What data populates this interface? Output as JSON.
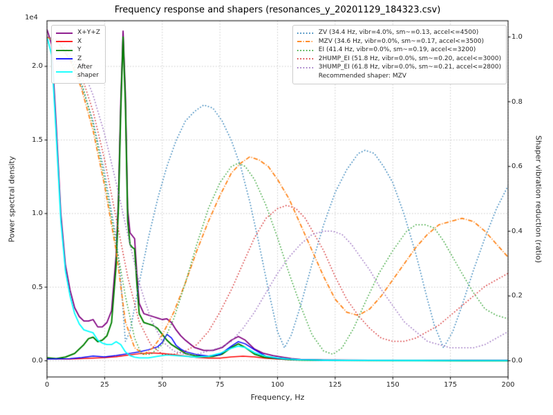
{
  "chart_data": {
    "type": "line",
    "title": "Frequency response and shapers (resonances_y_20201129_184323.csv)",
    "xlabel": "Frequency, Hz",
    "ylabel_left": "Power spectral density",
    "ylabel_right": "Shaper vibration reduction (ratio)",
    "y_left_offset_text": "1e4",
    "xlim": [
      0,
      200
    ],
    "ylim_left": [
      -1100,
      23100
    ],
    "ylim_right": [
      -0.05,
      1.05
    ],
    "grid": true,
    "x_ticks": {
      "values": [
        0,
        25,
        50,
        75,
        100,
        125,
        150,
        175,
        200
      ],
      "labels": [
        "0",
        "25",
        "50",
        "75",
        "100",
        "125",
        "150",
        "175",
        "200"
      ]
    },
    "y_ticks_left": {
      "values": [
        0,
        5000,
        10000,
        15000,
        20000
      ],
      "labels": [
        "0.0",
        "0.5",
        "1.0",
        "1.5",
        "2.0"
      ]
    },
    "y_ticks_right": {
      "values": [
        0,
        0.2,
        0.4,
        0.6,
        0.8,
        1.0
      ],
      "labels": [
        "0.0",
        "0.2",
        "0.4",
        "0.6",
        "0.8",
        "1.0"
      ]
    },
    "colors": {
      "grid": "#c3c3c3",
      "spine": "#000000",
      "text": "#262626"
    },
    "psd_series": [
      {
        "key": "xyz",
        "label": "X+Y+Z",
        "color": "#800080",
        "style": "solid",
        "axis": "left",
        "linewidth": 1.8,
        "x": [
          0,
          2,
          4,
          6,
          8,
          10,
          12,
          14,
          16,
          18,
          20,
          22,
          24,
          26,
          28,
          30,
          31,
          32,
          33,
          34,
          35,
          36,
          37,
          38,
          39,
          40,
          42,
          44,
          46,
          48,
          50,
          52,
          54,
          56,
          58,
          60,
          64,
          68,
          72,
          76,
          80,
          83,
          86,
          90,
          94,
          98,
          102,
          106,
          110,
          120,
          140,
          160,
          180,
          200
        ],
        "y": [
          22500,
          21500,
          16000,
          10000,
          6500,
          4800,
          3600,
          3000,
          2700,
          2700,
          2800,
          2300,
          2300,
          2600,
          3400,
          7200,
          11200,
          17700,
          22400,
          18200,
          10300,
          8700,
          8500,
          8300,
          5900,
          3900,
          3200,
          3100,
          3000,
          2900,
          2800,
          2850,
          2600,
          2100,
          1700,
          1400,
          900,
          700,
          700,
          900,
          1400,
          1650,
          1400,
          800,
          500,
          350,
          250,
          150,
          90,
          60,
          35,
          25,
          20,
          20
        ]
      },
      {
        "key": "x",
        "label": "X",
        "color": "#ff0000",
        "style": "solid",
        "axis": "left",
        "linewidth": 1.5,
        "x": [
          0,
          10,
          20,
          25,
          30,
          35,
          40,
          45,
          50,
          55,
          60,
          65,
          70,
          75,
          80,
          85,
          90,
          95,
          100,
          110,
          120,
          140,
          160,
          180,
          200
        ],
        "y": [
          150,
          120,
          180,
          220,
          280,
          380,
          480,
          530,
          500,
          420,
          320,
          230,
          180,
          180,
          260,
          310,
          260,
          170,
          120,
          60,
          40,
          25,
          20,
          15,
          15
        ]
      },
      {
        "key": "y",
        "label": "Y",
        "color": "#008000",
        "style": "solid",
        "axis": "left",
        "linewidth": 2.0,
        "x": [
          0,
          4,
          8,
          12,
          16,
          18,
          20,
          22,
          24,
          26,
          28,
          30,
          31,
          32,
          33,
          34,
          35,
          36,
          37,
          38,
          39,
          40,
          42,
          44,
          46,
          48,
          50,
          52,
          54,
          56,
          58,
          60,
          64,
          68,
          72,
          76,
          80,
          83,
          86,
          90,
          94,
          98,
          102,
          106,
          110,
          120,
          140,
          160,
          180,
          200
        ],
        "y": [
          200,
          150,
          250,
          500,
          1100,
          1500,
          1600,
          1300,
          1400,
          1700,
          2600,
          6500,
          10500,
          17000,
          22000,
          17500,
          9500,
          7900,
          7700,
          7600,
          5200,
          3200,
          2600,
          2500,
          2400,
          2200,
          1800,
          1400,
          1100,
          900,
          700,
          500,
          350,
          280,
          300,
          450,
          900,
          1150,
          900,
          450,
          250,
          180,
          120,
          80,
          50,
          30,
          20,
          15,
          10,
          10
        ]
      },
      {
        "key": "z",
        "label": "Z",
        "color": "#0000ff",
        "style": "solid",
        "axis": "left",
        "linewidth": 1.5,
        "x": [
          0,
          10,
          15,
          20,
          25,
          30,
          35,
          40,
          44,
          48,
          50,
          52,
          54,
          56,
          58,
          60,
          65,
          70,
          75,
          80,
          83,
          86,
          90,
          95,
          100,
          105,
          110,
          120,
          140,
          160,
          180,
          200
        ],
        "y": [
          120,
          150,
          220,
          320,
          260,
          360,
          480,
          600,
          750,
          950,
          1250,
          1800,
          1550,
          1050,
          800,
          620,
          420,
          320,
          420,
          1000,
          1300,
          1150,
          750,
          300,
          170,
          110,
          70,
          45,
          25,
          20,
          15,
          15
        ]
      },
      {
        "key": "after-shaper",
        "label": "After\nshaper",
        "color": "#00ffff",
        "style": "solid",
        "axis": "left",
        "linewidth": 1.8,
        "x": [
          0,
          2,
          4,
          6,
          8,
          10,
          12,
          14,
          16,
          18,
          20,
          22,
          24,
          26,
          28,
          30,
          32,
          34,
          36,
          38,
          40,
          44,
          48,
          52,
          56,
          60,
          65,
          70,
          75,
          80,
          83,
          86,
          90,
          95,
          100,
          105,
          110,
          120,
          140,
          160,
          180,
          200
        ],
        "y": [
          22000,
          20800,
          15300,
          9500,
          6100,
          4400,
          3200,
          2500,
          2100,
          2000,
          1900,
          1400,
          1200,
          1100,
          1100,
          1300,
          1100,
          600,
          350,
          250,
          200,
          200,
          300,
          400,
          350,
          300,
          250,
          300,
          500,
          850,
          1000,
          900,
          550,
          300,
          200,
          120,
          70,
          40,
          25,
          15,
          10,
          10
        ]
      }
    ],
    "shaper_series": [
      {
        "key": "zv",
        "label": "ZV (34.4 Hz, vibr=4.0%, sm~=0.13, accel<=4500)",
        "color": "#1f77b4",
        "style": "dotted",
        "axis": "right",
        "linewidth": 1.5,
        "x": [
          0,
          5,
          10,
          15,
          20,
          25,
          30,
          32,
          34,
          36,
          40,
          44,
          48,
          52,
          56,
          60,
          64,
          68,
          72,
          76,
          80,
          84,
          88,
          92,
          96,
          100,
          103,
          106,
          110,
          115,
          120,
          125,
          130,
          135,
          138,
          142,
          146,
          150,
          155,
          160,
          165,
          168,
          172,
          176,
          180,
          185,
          190,
          195,
          200
        ],
        "y": [
          1.0,
          0.98,
          0.93,
          0.85,
          0.74,
          0.58,
          0.38,
          0.25,
          0.06,
          0.09,
          0.24,
          0.38,
          0.5,
          0.6,
          0.68,
          0.74,
          0.77,
          0.79,
          0.78,
          0.74,
          0.68,
          0.6,
          0.49,
          0.36,
          0.22,
          0.09,
          0.04,
          0.08,
          0.17,
          0.3,
          0.42,
          0.52,
          0.59,
          0.64,
          0.65,
          0.64,
          0.6,
          0.55,
          0.45,
          0.33,
          0.19,
          0.11,
          0.04,
          0.09,
          0.17,
          0.28,
          0.38,
          0.47,
          0.54
        ]
      },
      {
        "key": "mzv",
        "label": "MZV (34.6 Hz, vibr=0.0%, sm~=0.17, accel<=3500)",
        "color": "#ff7f0e",
        "style": "dashdot",
        "axis": "right",
        "linewidth": 1.7,
        "x": [
          0,
          5,
          10,
          15,
          20,
          25,
          30,
          34,
          38,
          42,
          46,
          50,
          55,
          60,
          65,
          70,
          75,
          80,
          84,
          88,
          92,
          96,
          100,
          105,
          110,
          115,
          120,
          125,
          130,
          135,
          140,
          145,
          150,
          155,
          160,
          165,
          170,
          175,
          180,
          185,
          190,
          195,
          200
        ],
        "y": [
          1.0,
          0.98,
          0.93,
          0.84,
          0.71,
          0.54,
          0.34,
          0.12,
          0.04,
          0.02,
          0.04,
          0.08,
          0.15,
          0.24,
          0.34,
          0.43,
          0.51,
          0.58,
          0.61,
          0.63,
          0.62,
          0.6,
          0.56,
          0.5,
          0.42,
          0.34,
          0.26,
          0.19,
          0.15,
          0.14,
          0.16,
          0.2,
          0.25,
          0.3,
          0.35,
          0.39,
          0.42,
          0.43,
          0.44,
          0.43,
          0.4,
          0.36,
          0.32
        ]
      },
      {
        "key": "ei",
        "label": "EI (41.4 Hz, vibr=0.0%, sm~=0.19, accel<=3200)",
        "color": "#2ca02c",
        "style": "dotted",
        "axis": "right",
        "linewidth": 1.5,
        "x": [
          0,
          5,
          10,
          15,
          20,
          25,
          30,
          34,
          38,
          41,
          45,
          50,
          55,
          60,
          65,
          70,
          75,
          80,
          83,
          86,
          90,
          95,
          100,
          105,
          110,
          115,
          120,
          124,
          128,
          133,
          138,
          144,
          150,
          156,
          160,
          164,
          168,
          172,
          176,
          180,
          185,
          190,
          195,
          200
        ],
        "y": [
          1.0,
          0.98,
          0.94,
          0.86,
          0.73,
          0.56,
          0.36,
          0.2,
          0.07,
          0.02,
          0.02,
          0.05,
          0.13,
          0.24,
          0.36,
          0.47,
          0.55,
          0.6,
          0.61,
          0.6,
          0.56,
          0.48,
          0.38,
          0.27,
          0.17,
          0.08,
          0.03,
          0.02,
          0.04,
          0.1,
          0.18,
          0.27,
          0.34,
          0.4,
          0.42,
          0.42,
          0.41,
          0.37,
          0.32,
          0.27,
          0.21,
          0.16,
          0.14,
          0.13
        ]
      },
      {
        "key": "2hump-ei",
        "label": "2HUMP_EI (51.8 Hz, vibr=0.0%, sm~=0.20, accel<=3000)",
        "color": "#d62728",
        "style": "dotted",
        "axis": "right",
        "linewidth": 1.5,
        "x": [
          0,
          5,
          10,
          15,
          20,
          25,
          30,
          35,
          40,
          45,
          50,
          55,
          60,
          65,
          70,
          75,
          80,
          85,
          90,
          95,
          100,
          104,
          108,
          112,
          116,
          120,
          125,
          130,
          135,
          140,
          145,
          150,
          155,
          160,
          165,
          170,
          175,
          180,
          185,
          190,
          195,
          200
        ],
        "y": [
          1.0,
          0.99,
          0.95,
          0.88,
          0.77,
          0.62,
          0.44,
          0.26,
          0.12,
          0.05,
          0.02,
          0.02,
          0.03,
          0.05,
          0.09,
          0.15,
          0.22,
          0.3,
          0.38,
          0.44,
          0.47,
          0.48,
          0.47,
          0.44,
          0.39,
          0.34,
          0.26,
          0.19,
          0.14,
          0.1,
          0.07,
          0.06,
          0.06,
          0.07,
          0.09,
          0.11,
          0.14,
          0.17,
          0.2,
          0.23,
          0.25,
          0.27
        ]
      },
      {
        "key": "3hump-ei",
        "label": "3HUMP_EI (61.8 Hz, vibr=0.0%, sm~=0.21, accel<=2800)",
        "color": "#9467bd",
        "style": "dotted",
        "axis": "right",
        "linewidth": 1.5,
        "x": [
          0,
          5,
          10,
          15,
          20,
          25,
          30,
          35,
          40,
          45,
          50,
          55,
          60,
          65,
          70,
          75,
          80,
          85,
          90,
          95,
          100,
          105,
          110,
          115,
          120,
          124,
          128,
          132,
          136,
          140,
          145,
          150,
          155,
          160,
          165,
          170,
          175,
          180,
          185,
          190,
          195,
          200
        ],
        "y": [
          1.0,
          0.99,
          0.97,
          0.91,
          0.82,
          0.7,
          0.55,
          0.39,
          0.24,
          0.13,
          0.06,
          0.03,
          0.02,
          0.02,
          0.03,
          0.04,
          0.06,
          0.1,
          0.15,
          0.21,
          0.27,
          0.32,
          0.36,
          0.39,
          0.4,
          0.4,
          0.39,
          0.36,
          0.32,
          0.28,
          0.22,
          0.17,
          0.12,
          0.09,
          0.06,
          0.05,
          0.04,
          0.04,
          0.04,
          0.05,
          0.07,
          0.09
        ]
      }
    ],
    "recommended_label": "Recommended shaper: MZV"
  }
}
